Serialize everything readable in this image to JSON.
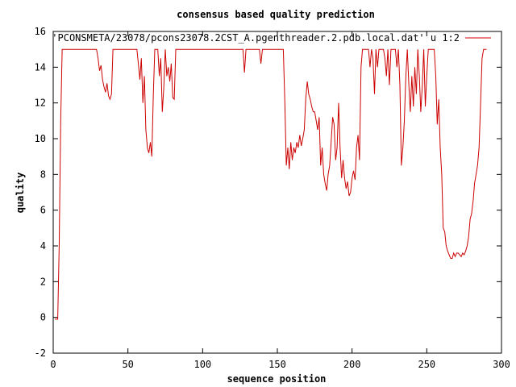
{
  "chart_data": {
    "type": "line",
    "title": "consensus based quality prediction",
    "xlabel": "sequence position",
    "ylabel": "quality",
    "xlim": [
      0,
      300
    ],
    "ylim": [
      -2,
      16
    ],
    "xticks": [
      0,
      50,
      100,
      150,
      200,
      250,
      300
    ],
    "yticks": [
      -2,
      0,
      2,
      4,
      6,
      8,
      10,
      12,
      14,
      16
    ],
    "grid": false,
    "legend_position": "top-right",
    "series": [
      {
        "name": "'PCONSMETA/23078/pcons23078.2CST_A.pgenthreader.2.pdb.local.dat' u 1:2",
        "color": "#cc0000",
        "points": [
          [
            1,
            -0.1
          ],
          [
            3,
            -0.1
          ],
          [
            4,
            4
          ],
          [
            5,
            11
          ],
          [
            6,
            15
          ],
          [
            29,
            15
          ],
          [
            30,
            14.5
          ],
          [
            31,
            13.8
          ],
          [
            32,
            14.1
          ],
          [
            33,
            13.3
          ],
          [
            34,
            12.9
          ],
          [
            35,
            12.6
          ],
          [
            36,
            13.1
          ],
          [
            37,
            12.4
          ],
          [
            38,
            12.2
          ],
          [
            39,
            12.5
          ],
          [
            40,
            15
          ],
          [
            56,
            15
          ],
          [
            57,
            14.2
          ],
          [
            58,
            13.3
          ],
          [
            59,
            14.5
          ],
          [
            60,
            12.0
          ],
          [
            61,
            13.5
          ],
          [
            62,
            10.5
          ],
          [
            63,
            9.5
          ],
          [
            64,
            9.2
          ],
          [
            65,
            9.8
          ],
          [
            66,
            9.0
          ],
          [
            67,
            12.5
          ],
          [
            68,
            15
          ],
          [
            70,
            15
          ],
          [
            71,
            13.5
          ],
          [
            72,
            14.5
          ],
          [
            73,
            11.5
          ],
          [
            74,
            12.8
          ],
          [
            75,
            15
          ],
          [
            76,
            13.5
          ],
          [
            77,
            14
          ],
          [
            78,
            13.2
          ],
          [
            79,
            14.2
          ],
          [
            80,
            12.3
          ],
          [
            81,
            12.2
          ],
          [
            82,
            15
          ],
          [
            127,
            15
          ],
          [
            128,
            13.7
          ],
          [
            129,
            15
          ],
          [
            138,
            15
          ],
          [
            139,
            14.2
          ],
          [
            140,
            15
          ],
          [
            154,
            15
          ],
          [
            155,
            12
          ],
          [
            156,
            8.5
          ],
          [
            157,
            9.5
          ],
          [
            158,
            8.3
          ],
          [
            159,
            9.8
          ],
          [
            160,
            8.8
          ],
          [
            161,
            9.5
          ],
          [
            162,
            9.2
          ],
          [
            163,
            9.8
          ],
          [
            164,
            9.5
          ],
          [
            165,
            10.2
          ],
          [
            166,
            9.6
          ],
          [
            167,
            10
          ],
          [
            168,
            10.5
          ],
          [
            169,
            12.2
          ],
          [
            170,
            13.2
          ],
          [
            171,
            12.5
          ],
          [
            172,
            12.2
          ],
          [
            173,
            11.8
          ],
          [
            174,
            11.5
          ],
          [
            175,
            11.5
          ],
          [
            176,
            11.0
          ],
          [
            177,
            10.5
          ],
          [
            178,
            11.2
          ],
          [
            179,
            8.5
          ],
          [
            180,
            9.5
          ],
          [
            181,
            8.0
          ],
          [
            182,
            7.5
          ],
          [
            183,
            7.1
          ],
          [
            184,
            8.0
          ],
          [
            185,
            8.5
          ],
          [
            186,
            9.8
          ],
          [
            187,
            11.2
          ],
          [
            188,
            10.8
          ],
          [
            189,
            8.8
          ],
          [
            190,
            9.5
          ],
          [
            191,
            12.0
          ],
          [
            192,
            9.5
          ],
          [
            193,
            7.8
          ],
          [
            194,
            8.8
          ],
          [
            195,
            7.8
          ],
          [
            196,
            7.2
          ],
          [
            197,
            7.6
          ],
          [
            198,
            6.8
          ],
          [
            199,
            7.0
          ],
          [
            200,
            7.8
          ],
          [
            201,
            8.2
          ],
          [
            202,
            7.7
          ],
          [
            203,
            9.5
          ],
          [
            204,
            10.2
          ],
          [
            205,
            8.8
          ],
          [
            206,
            14.0
          ],
          [
            207,
            15
          ],
          [
            211,
            15
          ],
          [
            212,
            14.0
          ],
          [
            213,
            15
          ],
          [
            214,
            14.5
          ],
          [
            215,
            12.5
          ],
          [
            216,
            15
          ],
          [
            217,
            14.0
          ],
          [
            218,
            15
          ],
          [
            221,
            15
          ],
          [
            222,
            14.5
          ],
          [
            223,
            13.5
          ],
          [
            224,
            15
          ],
          [
            225,
            13.0
          ],
          [
            226,
            15
          ],
          [
            229,
            15
          ],
          [
            230,
            14.0
          ],
          [
            231,
            15
          ],
          [
            232,
            13.0
          ],
          [
            233,
            8.5
          ],
          [
            234,
            9.5
          ],
          [
            235,
            11.0
          ],
          [
            236,
            13.5
          ],
          [
            237,
            15
          ],
          [
            238,
            13.0
          ],
          [
            239,
            11.5
          ],
          [
            240,
            13.5
          ],
          [
            241,
            11.8
          ],
          [
            242,
            14.0
          ],
          [
            243,
            12.5
          ],
          [
            244,
            15
          ],
          [
            245,
            13.5
          ],
          [
            246,
            11.5
          ],
          [
            247,
            13.0
          ],
          [
            248,
            15
          ],
          [
            249,
            11.8
          ],
          [
            250,
            13.5
          ],
          [
            251,
            15
          ],
          [
            255,
            15
          ],
          [
            256,
            13.5
          ],
          [
            257,
            10.8
          ],
          [
            258,
            12.2
          ],
          [
            259,
            9.5
          ],
          [
            260,
            8.0
          ],
          [
            261,
            5.0
          ],
          [
            262,
            4.8
          ],
          [
            263,
            4.0
          ],
          [
            264,
            3.7
          ],
          [
            265,
            3.5
          ],
          [
            266,
            3.3
          ],
          [
            267,
            3.3
          ],
          [
            268,
            3.6
          ],
          [
            269,
            3.4
          ],
          [
            270,
            3.6
          ],
          [
            271,
            3.6
          ],
          [
            272,
            3.5
          ],
          [
            273,
            3.4
          ],
          [
            274,
            3.6
          ],
          [
            275,
            3.5
          ],
          [
            276,
            3.7
          ],
          [
            277,
            4.0
          ],
          [
            278,
            4.5
          ],
          [
            279,
            5.5
          ],
          [
            280,
            5.8
          ],
          [
            281,
            6.5
          ],
          [
            282,
            7.5
          ],
          [
            283,
            8.0
          ],
          [
            284,
            8.5
          ],
          [
            285,
            9.5
          ],
          [
            286,
            12.0
          ],
          [
            287,
            14.5
          ],
          [
            288,
            15
          ],
          [
            290,
            15
          ]
        ]
      }
    ]
  }
}
